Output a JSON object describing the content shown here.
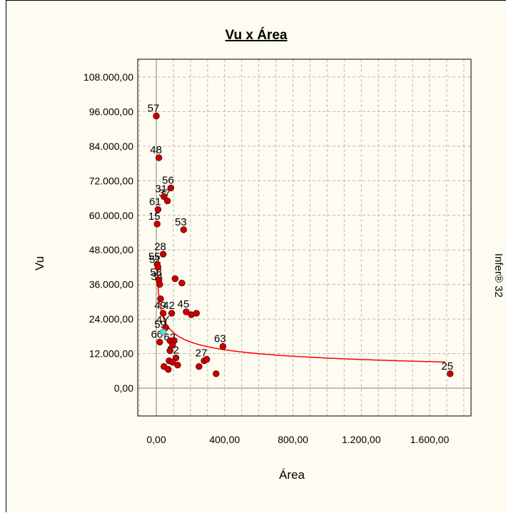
{
  "window": {
    "side_label": "Infer® 32"
  },
  "colors": {
    "background": "#fefbf0",
    "grid": "#b9b9b9",
    "point": "#cc0000",
    "highlight_point": "#6ed7d7",
    "fit_curve": "#ff0000"
  },
  "chart_data": {
    "type": "scatter",
    "title": "Vu x Área",
    "xlabel": "Área",
    "ylabel": "Vu",
    "xlim": [
      -100,
      1900
    ],
    "ylim": [
      -9000,
      108000
    ],
    "grid": true,
    "x_ticks": [
      0,
      400,
      800,
      1200,
      1600
    ],
    "x_tick_labels": [
      "0,00",
      "400,00",
      "800,00",
      "1.200,00",
      "1.600,00"
    ],
    "y_ticks": [
      0,
      12000,
      24000,
      36000,
      48000,
      60000,
      72000,
      84000,
      96000,
      108000
    ],
    "y_tick_labels": [
      "0,00",
      "12.000,00",
      "24.000,00",
      "36.000,00",
      "48.000,00",
      "60.000,00",
      "72.000,00",
      "84.000,00",
      "96.000,00",
      "108.000,00"
    ],
    "points": [
      {
        "x": 0,
        "y": 94500,
        "label": "57"
      },
      {
        "x": 15,
        "y": 80000,
        "label": "48"
      },
      {
        "x": 85,
        "y": 69500,
        "label": "56"
      },
      {
        "x": 65,
        "y": 65000,
        "label": "37"
      },
      {
        "x": 45,
        "y": 66500,
        "label": "31"
      },
      {
        "x": 10,
        "y": 62000,
        "label": "61"
      },
      {
        "x": 160,
        "y": 55000,
        "label": "53"
      },
      {
        "x": 5,
        "y": 57000,
        "label": "15"
      },
      {
        "x": 40,
        "y": 46500,
        "label": "28"
      },
      {
        "x": 5,
        "y": 43000,
        "label": "55"
      },
      {
        "x": 10,
        "y": 42000,
        "label": "51"
      },
      {
        "x": 15,
        "y": 37500,
        "label": "58"
      },
      {
        "x": 20,
        "y": 36000,
        "label": "34"
      },
      {
        "x": 110,
        "y": 38000,
        "label": ""
      },
      {
        "x": 150,
        "y": 36500,
        "label": ""
      },
      {
        "x": 25,
        "y": 31000,
        "label": ""
      },
      {
        "x": 40,
        "y": 26000,
        "label": "49"
      },
      {
        "x": 90,
        "y": 26000,
        "label": "42"
      },
      {
        "x": 175,
        "y": 26500,
        "label": "45"
      },
      {
        "x": 205,
        "y": 25500,
        "label": ""
      },
      {
        "x": 235,
        "y": 26000,
        "label": ""
      },
      {
        "x": 55,
        "y": 21000,
        "label": "4Y"
      },
      {
        "x": 40,
        "y": 19500,
        "label": "59",
        "highlight": true
      },
      {
        "x": 80,
        "y": 16500,
        "label": ""
      },
      {
        "x": 105,
        "y": 16500,
        "label": ""
      },
      {
        "x": 20,
        "y": 16000,
        "label": "66"
      },
      {
        "x": 95,
        "y": 15000,
        "label": "62"
      },
      {
        "x": 390,
        "y": 14500,
        "label": "63"
      },
      {
        "x": 80,
        "y": 13000,
        "label": ""
      },
      {
        "x": 115,
        "y": 10500,
        "label": "52"
      },
      {
        "x": 75,
        "y": 9500,
        "label": ""
      },
      {
        "x": 95,
        "y": 9000,
        "label": ""
      },
      {
        "x": 280,
        "y": 9500,
        "label": "27"
      },
      {
        "x": 295,
        "y": 10000,
        "label": ""
      },
      {
        "x": 45,
        "y": 7500,
        "label": ""
      },
      {
        "x": 70,
        "y": 6500,
        "label": ""
      },
      {
        "x": 125,
        "y": 8000,
        "label": ""
      },
      {
        "x": 250,
        "y": 7500,
        "label": ""
      },
      {
        "x": 350,
        "y": 5000,
        "label": ""
      },
      {
        "x": 1720,
        "y": 5000,
        "label": "25"
      }
    ]
  }
}
